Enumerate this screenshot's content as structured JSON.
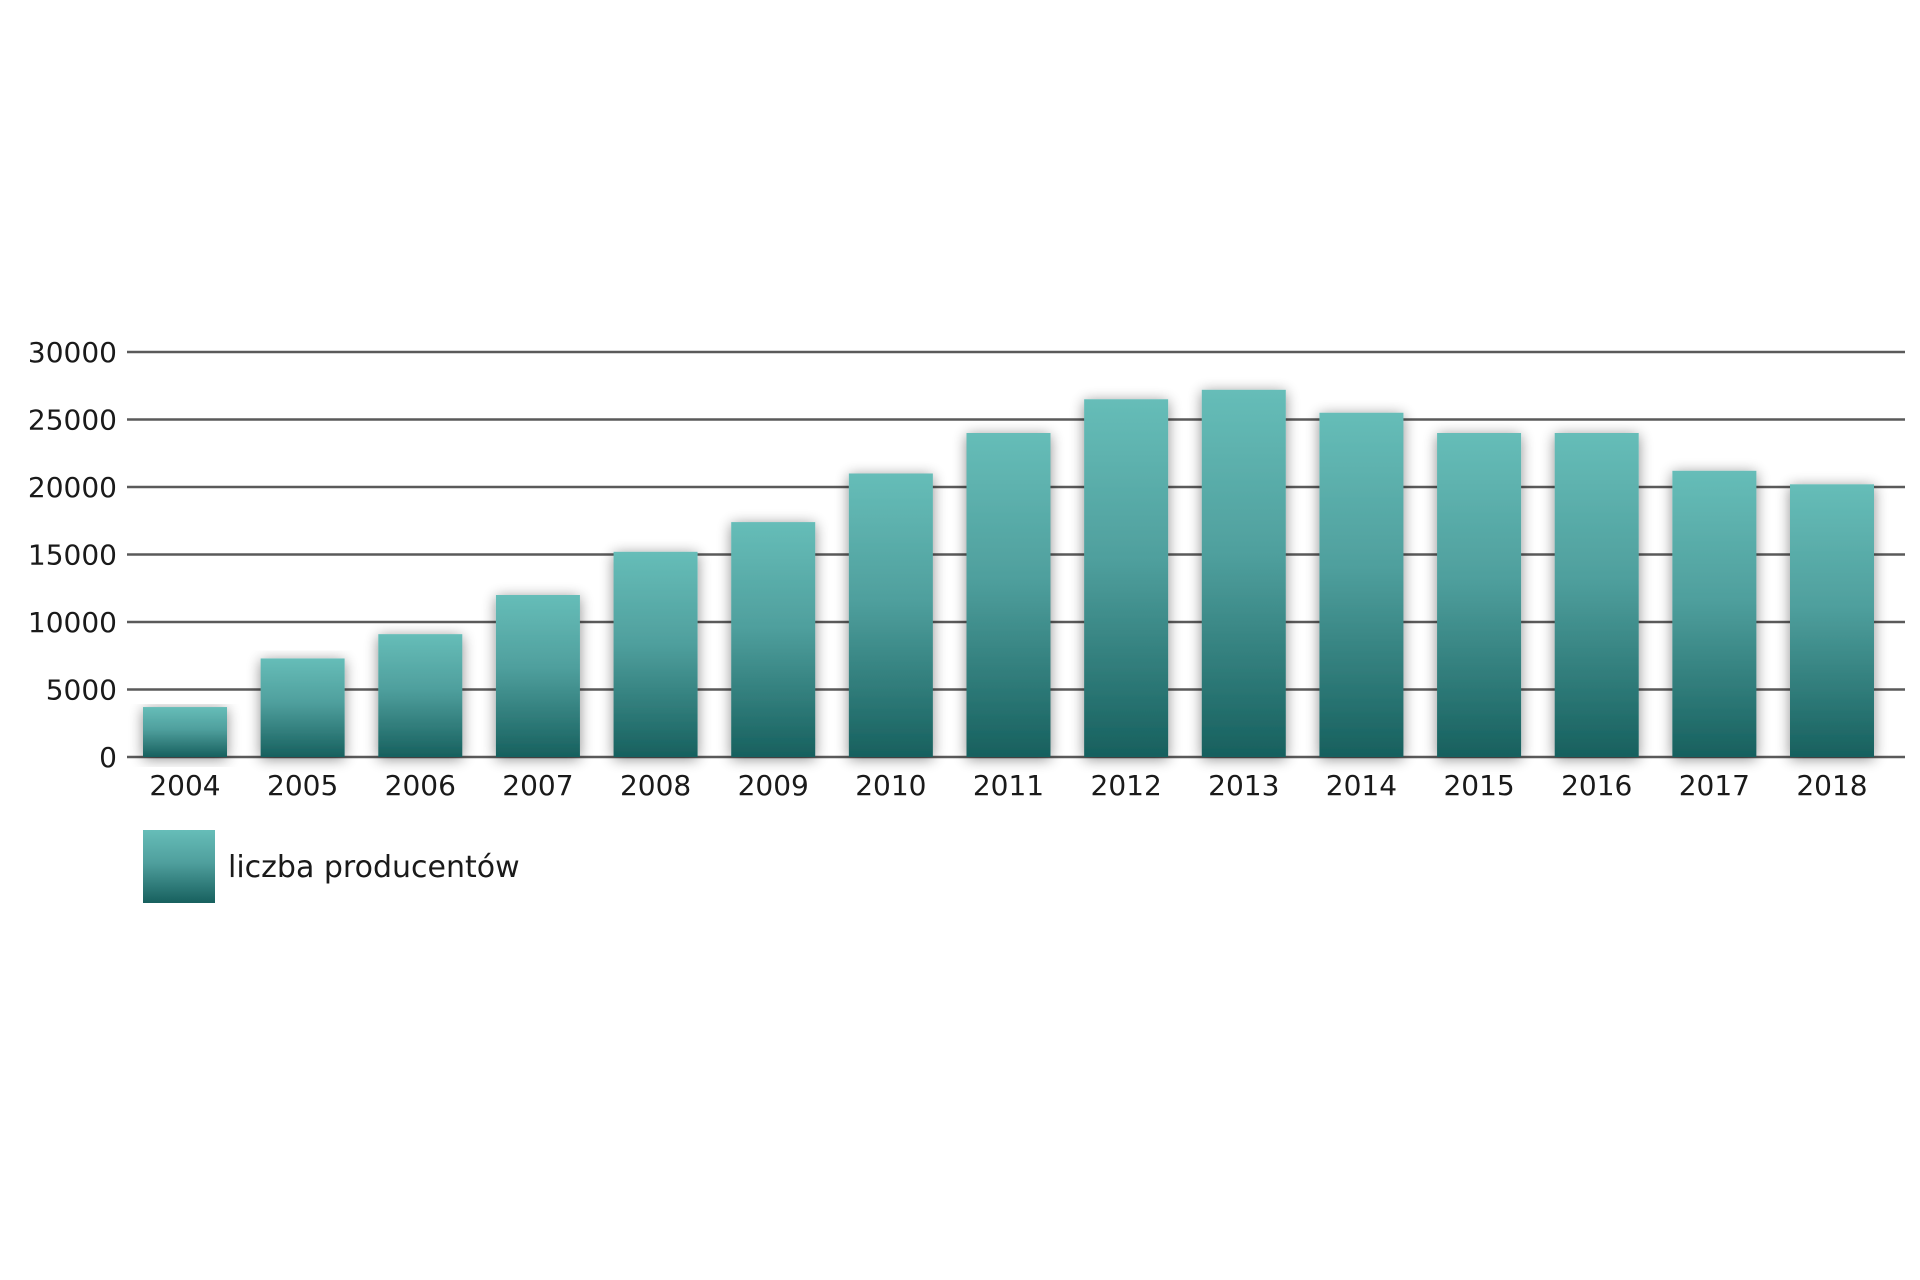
{
  "colors": {
    "bar_top": "#66bdb8",
    "bar_bottom": "#17605e",
    "grid": "#5a5a5a",
    "text": "#1a1a1a"
  },
  "chart_data": {
    "type": "bar",
    "title": "",
    "xlabel": "",
    "ylabel": "",
    "ylim": [
      0,
      30000
    ],
    "yticks": [
      0,
      5000,
      10000,
      15000,
      20000,
      25000,
      30000
    ],
    "grid": true,
    "legend_position": "bottom-left",
    "categories": [
      "2004",
      "2005",
      "2006",
      "2007",
      "2008",
      "2009",
      "2010",
      "2011",
      "2012",
      "2013",
      "2014",
      "2015",
      "2016",
      "2017",
      "2018"
    ],
    "series": [
      {
        "name": "liczba producentów",
        "values": [
          3700,
          7300,
          9100,
          12000,
          15200,
          17400,
          21000,
          24000,
          26500,
          27200,
          25500,
          24000,
          24000,
          21200,
          20200
        ]
      }
    ]
  }
}
